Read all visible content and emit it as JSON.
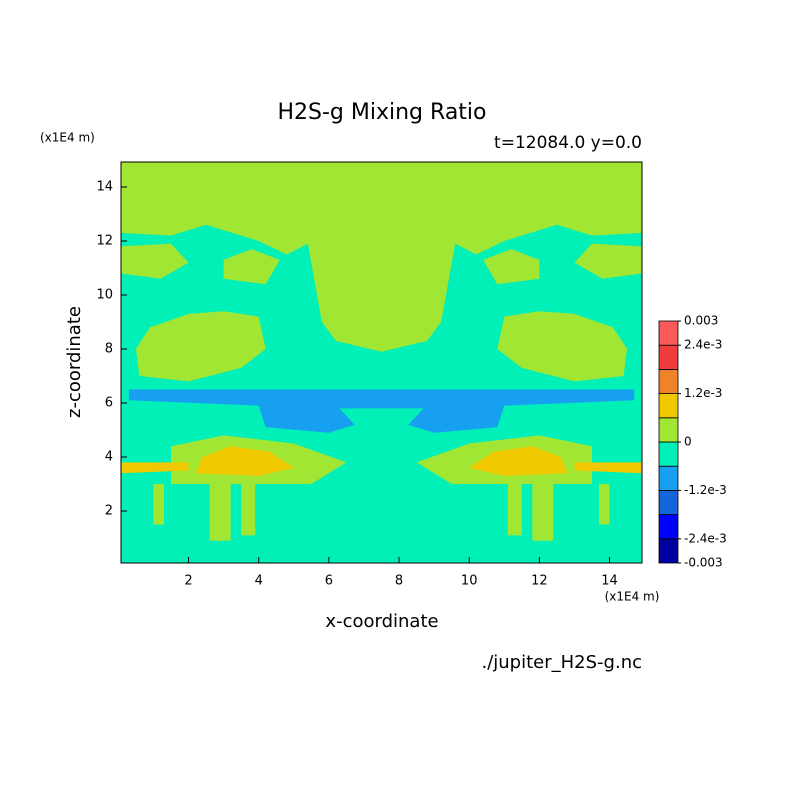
{
  "chart_data": {
    "type": "contour",
    "title": "H2S-g Mixing Ratio",
    "subtitle": "t=12084.0 y=0.0",
    "x_label": "x-coordinate",
    "y_label": "z-coordinate",
    "x_unit": "(x1E4 m)",
    "y_unit": "(x1E4 m)",
    "footer": "./jupiter_H2S-g.nc",
    "xlim": [
      0.075,
      14.925
    ],
    "ylim": [
      0.075,
      14.925
    ],
    "xticks": [
      2,
      4,
      6,
      8,
      10,
      12,
      14
    ],
    "yticks": [
      2,
      4,
      6,
      8,
      10,
      12,
      14
    ],
    "clevels": [
      -0.003,
      -0.0024,
      -0.0018,
      -0.0012,
      -0.0006,
      0,
      0.0006,
      0.0012,
      0.0018,
      0.0024,
      0.003
    ],
    "colors": [
      "#0000a0",
      "#0000ff",
      "#1464dc",
      "#18a0f0",
      "#00f0b8",
      "#a0e632",
      "#f0c800",
      "#f08228",
      "#f03c3c",
      "#fa5a5a"
    ],
    "cticks": [
      0.003,
      {
        "value": 0.0024,
        "label": "2.4e-3"
      },
      {
        "value": 0.0012,
        "label": "1.2e-3"
      },
      0,
      {
        "value": -0.0012,
        "label": "-1.2e-3"
      },
      {
        "value": -0.0024,
        "label": "-2.4e-3"
      },
      -0.003
    ]
  }
}
